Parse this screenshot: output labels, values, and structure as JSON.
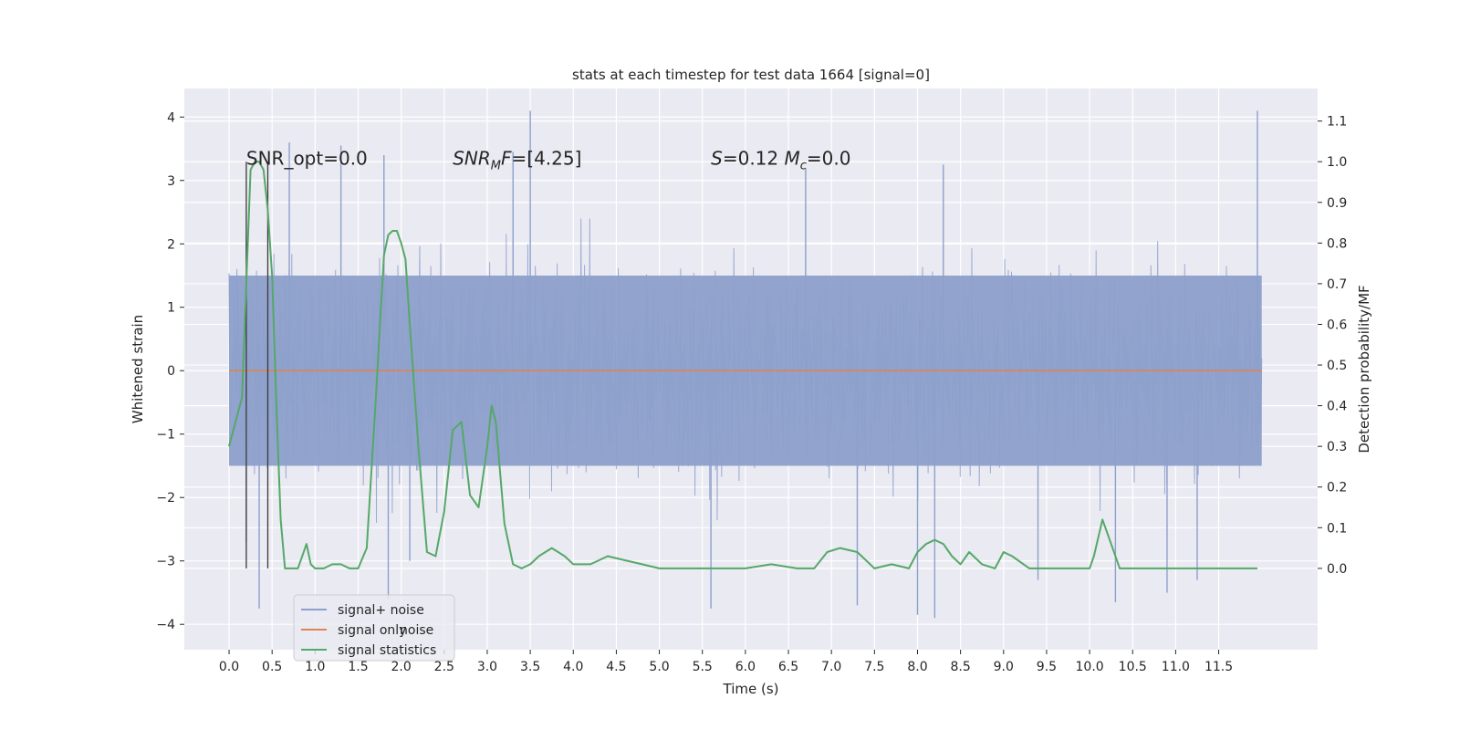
{
  "chart_data": {
    "type": "line",
    "title": "stats at each timestep for test data 1664 [signal=0]",
    "xlabel": "Time (s)",
    "ylabel": "Whitened strain",
    "ylabel_right": "Detection probability/MF",
    "xlim": [
      -0.52,
      12.65
    ],
    "ylim": [
      -4.4,
      4.45
    ],
    "ylim_right": [
      -0.2,
      1.18
    ],
    "x_ticks": [
      0.0,
      0.5,
      1.0,
      1.5,
      2.0,
      2.5,
      3.0,
      3.5,
      4.0,
      4.5,
      5.0,
      5.5,
      6.0,
      6.5,
      7.0,
      7.5,
      8.0,
      8.5,
      9.0,
      9.5,
      10.0,
      10.5,
      11.0,
      11.5
    ],
    "x_tick_labels": [
      "0.0",
      "0.5",
      "1.0",
      "1.5",
      "2.0",
      "2.5",
      "3.0",
      "3.5",
      "4.0",
      "4.5",
      "5.0",
      "5.5",
      "6.0",
      "6.5",
      "7.0",
      "7.5",
      "8.0",
      "8.5",
      "9.0",
      "9.5",
      "10.0",
      "10.5",
      "11.0",
      "11.5"
    ],
    "y_ticks": [
      -4,
      -3,
      -2,
      -1,
      0,
      1,
      2,
      3,
      4
    ],
    "y_tick_labels": [
      "−4",
      "−3",
      "−2",
      "−1",
      "0",
      "1",
      "2",
      "3",
      "4"
    ],
    "y_ticks_right": [
      0.0,
      0.1,
      0.2,
      0.3,
      0.4,
      0.5,
      0.6,
      0.7,
      0.8,
      0.9,
      1.0,
      1.1
    ],
    "y_tick_labels_right": [
      "0.0",
      "0.1",
      "0.2",
      "0.3",
      "0.4",
      "0.5",
      "0.6",
      "0.7",
      "0.8",
      "0.9",
      "1.0",
      "1.1"
    ],
    "grid": true,
    "annotations": [
      {
        "text": "SNR_opt=0.0",
        "x": 0.2,
        "y": 3.25
      },
      {
        "text": "SNR_MF=[4.25]",
        "x": 2.6,
        "y": 3.25
      },
      {
        "text": "S=0.12   M_c=0.0",
        "x": 5.6,
        "y": 3.25
      }
    ],
    "legend": {
      "placement": "lower-left",
      "entries": [
        "signal+ noise",
        "signal only",
        "signal statistics"
      ],
      "ghost_text": "noise"
    },
    "series": [
      {
        "name": "signal+ noise",
        "axis": "left",
        "color": "#8da0cb",
        "kind": "noise",
        "x_range": [
          0.0,
          12.0
        ],
        "typical_band": [
          -1.5,
          1.5
        ],
        "envelope_at_edges": [
          -2.0,
          2.0
        ],
        "spikes": [
          {
            "x": 3.5,
            "y": 4.1
          },
          {
            "x": 11.95,
            "y": 4.1
          },
          {
            "x": 1.3,
            "y": 3.55
          },
          {
            "x": 1.8,
            "y": 3.4
          },
          {
            "x": 0.7,
            "y": 3.6
          },
          {
            "x": 3.3,
            "y": 3.45
          },
          {
            "x": 6.7,
            "y": 3.2
          },
          {
            "x": 8.3,
            "y": 3.25
          },
          {
            "x": 0.35,
            "y": -3.75
          },
          {
            "x": 1.85,
            "y": -3.6
          },
          {
            "x": 5.6,
            "y": -3.75
          },
          {
            "x": 8.2,
            "y": -3.9
          },
          {
            "x": 8.0,
            "y": -3.85
          },
          {
            "x": 10.9,
            "y": -3.5
          },
          {
            "x": 7.3,
            "y": -3.7
          },
          {
            "x": 10.3,
            "y": -3.65
          },
          {
            "x": 0.2,
            "y": -2.7
          },
          {
            "x": 11.25,
            "y": -3.3
          },
          {
            "x": 2.1,
            "y": -3.0
          },
          {
            "x": 9.4,
            "y": -3.3
          }
        ]
      },
      {
        "name": "signal only",
        "axis": "left",
        "color": "#dd8452",
        "x": [
          0.0,
          12.0
        ],
        "y": [
          0.0,
          0.0
        ]
      },
      {
        "name": "signal statistics",
        "axis": "right",
        "color": "#55a868",
        "x": [
          0.0,
          0.15,
          0.25,
          0.3,
          0.35,
          0.4,
          0.45,
          0.5,
          0.55,
          0.6,
          0.65,
          0.7,
          0.8,
          0.9,
          0.95,
          1.0,
          1.1,
          1.2,
          1.3,
          1.4,
          1.5,
          1.6,
          1.7,
          1.8,
          1.85,
          1.9,
          1.95,
          2.0,
          2.05,
          2.1,
          2.2,
          2.3,
          2.4,
          2.5,
          2.6,
          2.7,
          2.8,
          2.9,
          3.0,
          3.05,
          3.1,
          3.2,
          3.3,
          3.4,
          3.5,
          3.6,
          3.75,
          3.9,
          4.0,
          4.2,
          4.4,
          4.6,
          4.8,
          5.0,
          5.5,
          6.0,
          6.3,
          6.6,
          6.8,
          6.95,
          7.1,
          7.3,
          7.5,
          7.7,
          7.9,
          8.0,
          8.1,
          8.2,
          8.3,
          8.4,
          8.5,
          8.6,
          8.75,
          8.9,
          9.0,
          9.1,
          9.3,
          9.6,
          10.0,
          10.05,
          10.15,
          10.25,
          10.35,
          10.5,
          11.0,
          11.5,
          11.95
        ],
        "y": [
          0.3,
          0.42,
          0.98,
          1.0,
          1.0,
          0.98,
          0.88,
          0.72,
          0.4,
          0.12,
          0.0,
          0.0,
          0.0,
          0.06,
          0.01,
          0.0,
          0.0,
          0.01,
          0.01,
          0.0,
          0.0,
          0.05,
          0.4,
          0.77,
          0.82,
          0.83,
          0.83,
          0.8,
          0.76,
          0.6,
          0.3,
          0.04,
          0.03,
          0.14,
          0.34,
          0.36,
          0.18,
          0.15,
          0.3,
          0.4,
          0.36,
          0.11,
          0.01,
          0.0,
          0.01,
          0.03,
          0.05,
          0.03,
          0.01,
          0.01,
          0.03,
          0.02,
          0.01,
          0.0,
          0.0,
          0.0,
          0.01,
          0.0,
          0.0,
          0.04,
          0.05,
          0.04,
          0.0,
          0.01,
          0.0,
          0.04,
          0.06,
          0.07,
          0.06,
          0.03,
          0.01,
          0.04,
          0.01,
          0.0,
          0.04,
          0.03,
          0.0,
          0.0,
          0.0,
          0.03,
          0.12,
          0.06,
          0.0,
          0.0,
          0.0,
          0.0,
          0.0
        ]
      },
      {
        "name": "",
        "axis": "right",
        "color": "#3a3a3a",
        "kind": "vline",
        "x": 0.2,
        "y_range": [
          0.0,
          1.0
        ]
      },
      {
        "name": "",
        "axis": "right",
        "color": "#3a3a3a",
        "kind": "vline",
        "x": 0.45,
        "y_range": [
          0.0,
          1.0
        ]
      }
    ]
  }
}
